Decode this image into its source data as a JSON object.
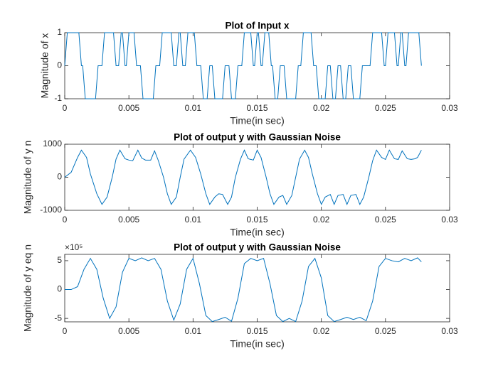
{
  "chart_data": [
    {
      "type": "line",
      "title": "Plot of Input x",
      "xlabel": "Time(in sec)",
      "ylabel": "Magnitude of x",
      "x": [
        0,
        0.0002,
        0.0011,
        0.0013,
        0.0014,
        0.0016,
        0.0024,
        0.0026,
        0.0029,
        0.0031,
        0.0038,
        0.004,
        0.0042,
        0.0044,
        0.0045,
        0.0047,
        0.0048,
        0.005,
        0.0054,
        0.0056,
        0.0059,
        0.0061,
        0.0069,
        0.0071,
        0.0074,
        0.0076,
        0.0083,
        0.0085,
        0.0087,
        0.0089,
        0.009,
        0.0092,
        0.0094,
        0.0096,
        0.0101,
        0.0103,
        0.0106,
        0.0108,
        0.0111,
        0.0113,
        0.0115,
        0.0117,
        0.0123,
        0.0125,
        0.0128,
        0.013,
        0.0133,
        0.0135,
        0.0138,
        0.014,
        0.0145,
        0.0147,
        0.0148,
        0.015,
        0.0151,
        0.0153,
        0.0154,
        0.0156,
        0.0159,
        0.0161,
        0.0162,
        0.0164,
        0.0166,
        0.0168,
        0.0171,
        0.0173,
        0.018,
        0.0182,
        0.0184,
        0.0186,
        0.0192,
        0.0194,
        0.0196,
        0.0198,
        0.0203,
        0.0205,
        0.0207,
        0.0209,
        0.0211,
        0.0213,
        0.0215,
        0.0217,
        0.0219,
        0.0221,
        0.0223,
        0.0225,
        0.023,
        0.0232,
        0.0238,
        0.024,
        0.0247,
        0.0249,
        0.025,
        0.0252,
        0.0257,
        0.0259,
        0.026,
        0.0262,
        0.0263,
        0.0265,
        0.0266,
        0.0268,
        0.0276,
        0.0278
      ],
      "values": [
        0,
        1,
        1,
        0,
        0,
        -1,
        -1,
        0,
        0,
        1,
        1,
        0,
        0,
        1,
        1,
        0,
        0,
        1,
        1,
        0,
        0,
        -1,
        -1,
        0,
        0,
        1,
        1,
        0,
        0,
        1,
        1,
        0,
        0,
        1,
        1,
        0,
        0,
        -1,
        -1,
        0,
        0,
        -1,
        -1,
        0,
        0,
        -1,
        -1,
        0,
        0,
        1,
        1,
        0,
        0,
        1,
        1,
        0,
        0,
        1,
        1,
        0,
        0,
        -1,
        -1,
        0,
        0,
        -1,
        -1,
        0,
        0,
        1,
        1,
        0,
        0,
        -1,
        -1,
        0,
        0,
        -1,
        -1,
        0,
        0,
        -1,
        -1,
        0,
        0,
        -1,
        -1,
        0,
        0,
        1,
        1,
        0,
        0,
        1,
        1,
        0,
        0,
        1,
        1,
        0,
        0,
        1,
        1,
        0
      ],
      "color": "#0072bd",
      "xlim": [
        0,
        0.03
      ],
      "xticks": [
        0,
        0.005,
        0.01,
        0.015,
        0.02,
        0.025,
        0.03
      ],
      "ylim": [
        -1,
        1
      ],
      "yticks": [
        -1,
        0,
        1
      ]
    },
    {
      "type": "line",
      "title": "Plot of output y with Gaussian Noise",
      "xlabel": "Time(in sec)",
      "ylabel": "Magnitude of y n",
      "x": [
        0,
        0.0005,
        0.001,
        0.0013,
        0.0017,
        0.002,
        0.0025,
        0.0029,
        0.0033,
        0.0037,
        0.004,
        0.0043,
        0.0047,
        0.005,
        0.0053,
        0.0057,
        0.006,
        0.0063,
        0.0067,
        0.007,
        0.0073,
        0.0077,
        0.008,
        0.0083,
        0.0087,
        0.009,
        0.0093,
        0.0098,
        0.0102,
        0.0106,
        0.011,
        0.0113,
        0.0117,
        0.012,
        0.0123,
        0.0127,
        0.013,
        0.0133,
        0.0137,
        0.014,
        0.0143,
        0.0147,
        0.015,
        0.0153,
        0.0157,
        0.016,
        0.0163,
        0.0167,
        0.017,
        0.0173,
        0.0177,
        0.018,
        0.0183,
        0.0187,
        0.019,
        0.0193,
        0.0197,
        0.02,
        0.0203,
        0.0207,
        0.021,
        0.0213,
        0.0217,
        0.022,
        0.0223,
        0.0227,
        0.023,
        0.0233,
        0.0237,
        0.024,
        0.0243,
        0.0247,
        0.025,
        0.0253,
        0.0257,
        0.026,
        0.0263,
        0.0267,
        0.027,
        0.0273,
        0.0275,
        0.0278
      ],
      "values": [
        0,
        150,
        600,
        820,
        600,
        100,
        -500,
        -820,
        -600,
        0,
        550,
        820,
        560,
        520,
        500,
        820,
        580,
        520,
        520,
        800,
        500,
        0,
        -500,
        -820,
        -600,
        0,
        550,
        820,
        600,
        100,
        -500,
        -820,
        -600,
        -500,
        -520,
        -820,
        -600,
        0,
        550,
        820,
        560,
        520,
        820,
        600,
        0,
        -500,
        -820,
        -600,
        -550,
        -820,
        -550,
        0,
        550,
        820,
        600,
        100,
        -500,
        -820,
        -600,
        -520,
        -820,
        -550,
        -520,
        -820,
        -550,
        -520,
        -820,
        -600,
        0,
        500,
        820,
        600,
        540,
        820,
        560,
        540,
        800,
        560,
        540,
        560,
        600,
        820
      ],
      "color": "#0072bd",
      "xlim": [
        0,
        0.03
      ],
      "xticks": [
        0,
        0.005,
        0.01,
        0.015,
        0.02,
        0.025,
        0.03
      ],
      "ylim": [
        -1000,
        1000
      ],
      "yticks": [
        -1000,
        0,
        1000
      ]
    },
    {
      "type": "line",
      "title": "Plot of output y with Gaussian Noise",
      "xlabel": "Time(in sec)",
      "ylabel": "Magnitude of y eq n",
      "y_exponent": "×10⁵",
      "x": [
        0,
        0.0005,
        0.001,
        0.0015,
        0.002,
        0.0025,
        0.003,
        0.0035,
        0.004,
        0.0045,
        0.005,
        0.0055,
        0.006,
        0.0065,
        0.007,
        0.0075,
        0.008,
        0.0085,
        0.009,
        0.0095,
        0.01,
        0.0105,
        0.011,
        0.0115,
        0.012,
        0.0125,
        0.013,
        0.0135,
        0.014,
        0.0145,
        0.015,
        0.0155,
        0.016,
        0.0165,
        0.017,
        0.0175,
        0.018,
        0.0185,
        0.019,
        0.0195,
        0.02,
        0.0205,
        0.021,
        0.0215,
        0.022,
        0.0225,
        0.023,
        0.0235,
        0.024,
        0.0245,
        0.025,
        0.0255,
        0.026,
        0.0265,
        0.027,
        0.0275,
        0.0278
      ],
      "values": [
        0,
        0,
        50000,
        350000,
        540000,
        350000,
        -150000,
        -500000,
        -300000,
        300000,
        540000,
        500000,
        550000,
        500000,
        540000,
        350000,
        -200000,
        -530000,
        -250000,
        350000,
        540000,
        100000,
        -450000,
        -555000,
        -520000,
        -480000,
        -550000,
        -150000,
        450000,
        540000,
        500000,
        540000,
        100000,
        -450000,
        -555000,
        -500000,
        -555000,
        -200000,
        400000,
        540000,
        200000,
        -450000,
        -555000,
        -520000,
        -480000,
        -520000,
        -480000,
        -540000,
        -200000,
        400000,
        540000,
        500000,
        480000,
        540000,
        500000,
        550000,
        480000
      ],
      "color": "#0072bd",
      "xlim": [
        0,
        0.03
      ],
      "xticks": [
        0,
        0.005,
        0.01,
        0.015,
        0.02,
        0.025,
        0.03
      ],
      "ylim": [
        -560000,
        610000
      ],
      "yticks": [
        {
          "value": -500000,
          "label": "-5"
        },
        {
          "value": 0,
          "label": "0"
        },
        {
          "value": 500000,
          "label": "5"
        }
      ]
    }
  ]
}
